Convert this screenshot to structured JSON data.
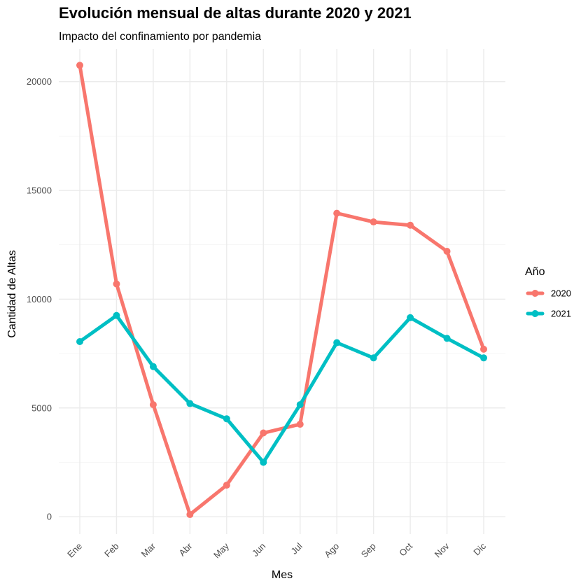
{
  "chart_data": {
    "type": "line",
    "title": "Evolución mensual de altas durante 2020 y 2021",
    "subtitle": "Impacto del confinamiento por pandemia",
    "xlabel": "Mes",
    "ylabel": "Cantidad de Altas",
    "categories": [
      "Ene",
      "Feb",
      "Mar",
      "Abr",
      "May",
      "Jun",
      "Jul",
      "Ago",
      "Sep",
      "Oct",
      "Nov",
      "Dic"
    ],
    "ylim": [
      -800,
      21500
    ],
    "yticks": [
      0,
      5000,
      10000,
      15000,
      20000
    ],
    "ytick_labels": [
      "0",
      "5000",
      "10000",
      "15000",
      "20000"
    ],
    "grid": true,
    "legend": {
      "title": "Año",
      "position": "right"
    },
    "series": [
      {
        "name": "2020",
        "color": "#F8766D",
        "values": [
          20750,
          10700,
          5150,
          100,
          1450,
          3850,
          4250,
          13950,
          13550,
          13400,
          12200,
          7700
        ]
      },
      {
        "name": "2021",
        "color": "#00BFC4",
        "values": [
          8050,
          9250,
          6900,
          5200,
          4500,
          2500,
          5150,
          8000,
          7300,
          9150,
          8200,
          7300
        ]
      }
    ]
  }
}
